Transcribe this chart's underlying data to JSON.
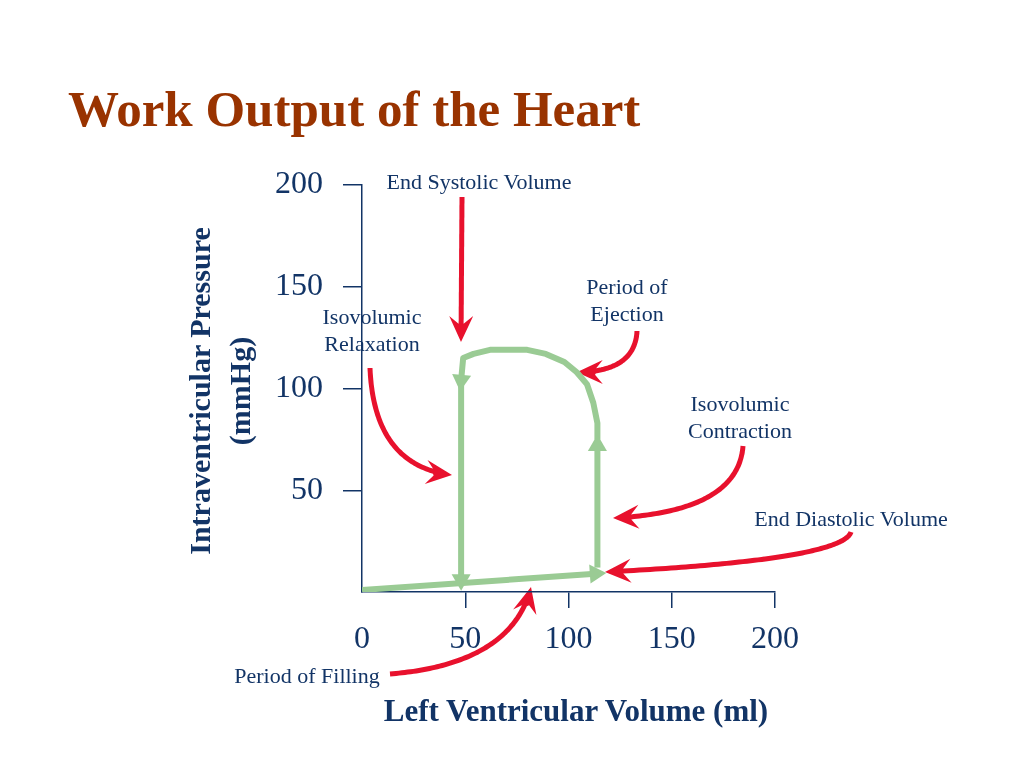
{
  "chart_data": {
    "type": "line",
    "title": "Work Output of the Heart",
    "xlabel": "Left Ventricular Volume (ml)",
    "ylabel": "Intraventricular Pressure (mmHg)",
    "xlim": [
      0,
      200
    ],
    "xticks": [
      0,
      50,
      100,
      150,
      200
    ],
    "ylim": [
      0,
      200
    ],
    "yticks": [
      50,
      100,
      150,
      200
    ],
    "series": [
      {
        "color": "#9acb94",
        "x": [
          0,
          113
        ],
        "values": [
          1,
          9
        ]
      },
      {
        "color": "#9acb94",
        "x": [
          114,
          114
        ],
        "values": [
          12,
          72
        ]
      },
      {
        "color": "#9acb94",
        "x": [
          114,
          114,
          112,
          109,
          104,
          98,
          89,
          80,
          70,
          62,
          54,
          49,
          48
        ],
        "values": [
          75,
          83,
          93,
          102,
          108,
          113,
          117,
          119,
          119,
          119,
          117,
          115,
          104
        ]
      },
      {
        "color": "#9acb94",
        "x": [
          48,
          48
        ],
        "values": [
          102,
          6
        ]
      }
    ],
    "annotations": [
      "End Systolic Volume",
      {
        "text": "Period of Ejection",
        "x": 104,
        "y": 108
      },
      "Isovolumic Relaxation",
      "Isovolumic Contraction",
      "End Diastolic Volume",
      "Period of Filling"
    ]
  }
}
